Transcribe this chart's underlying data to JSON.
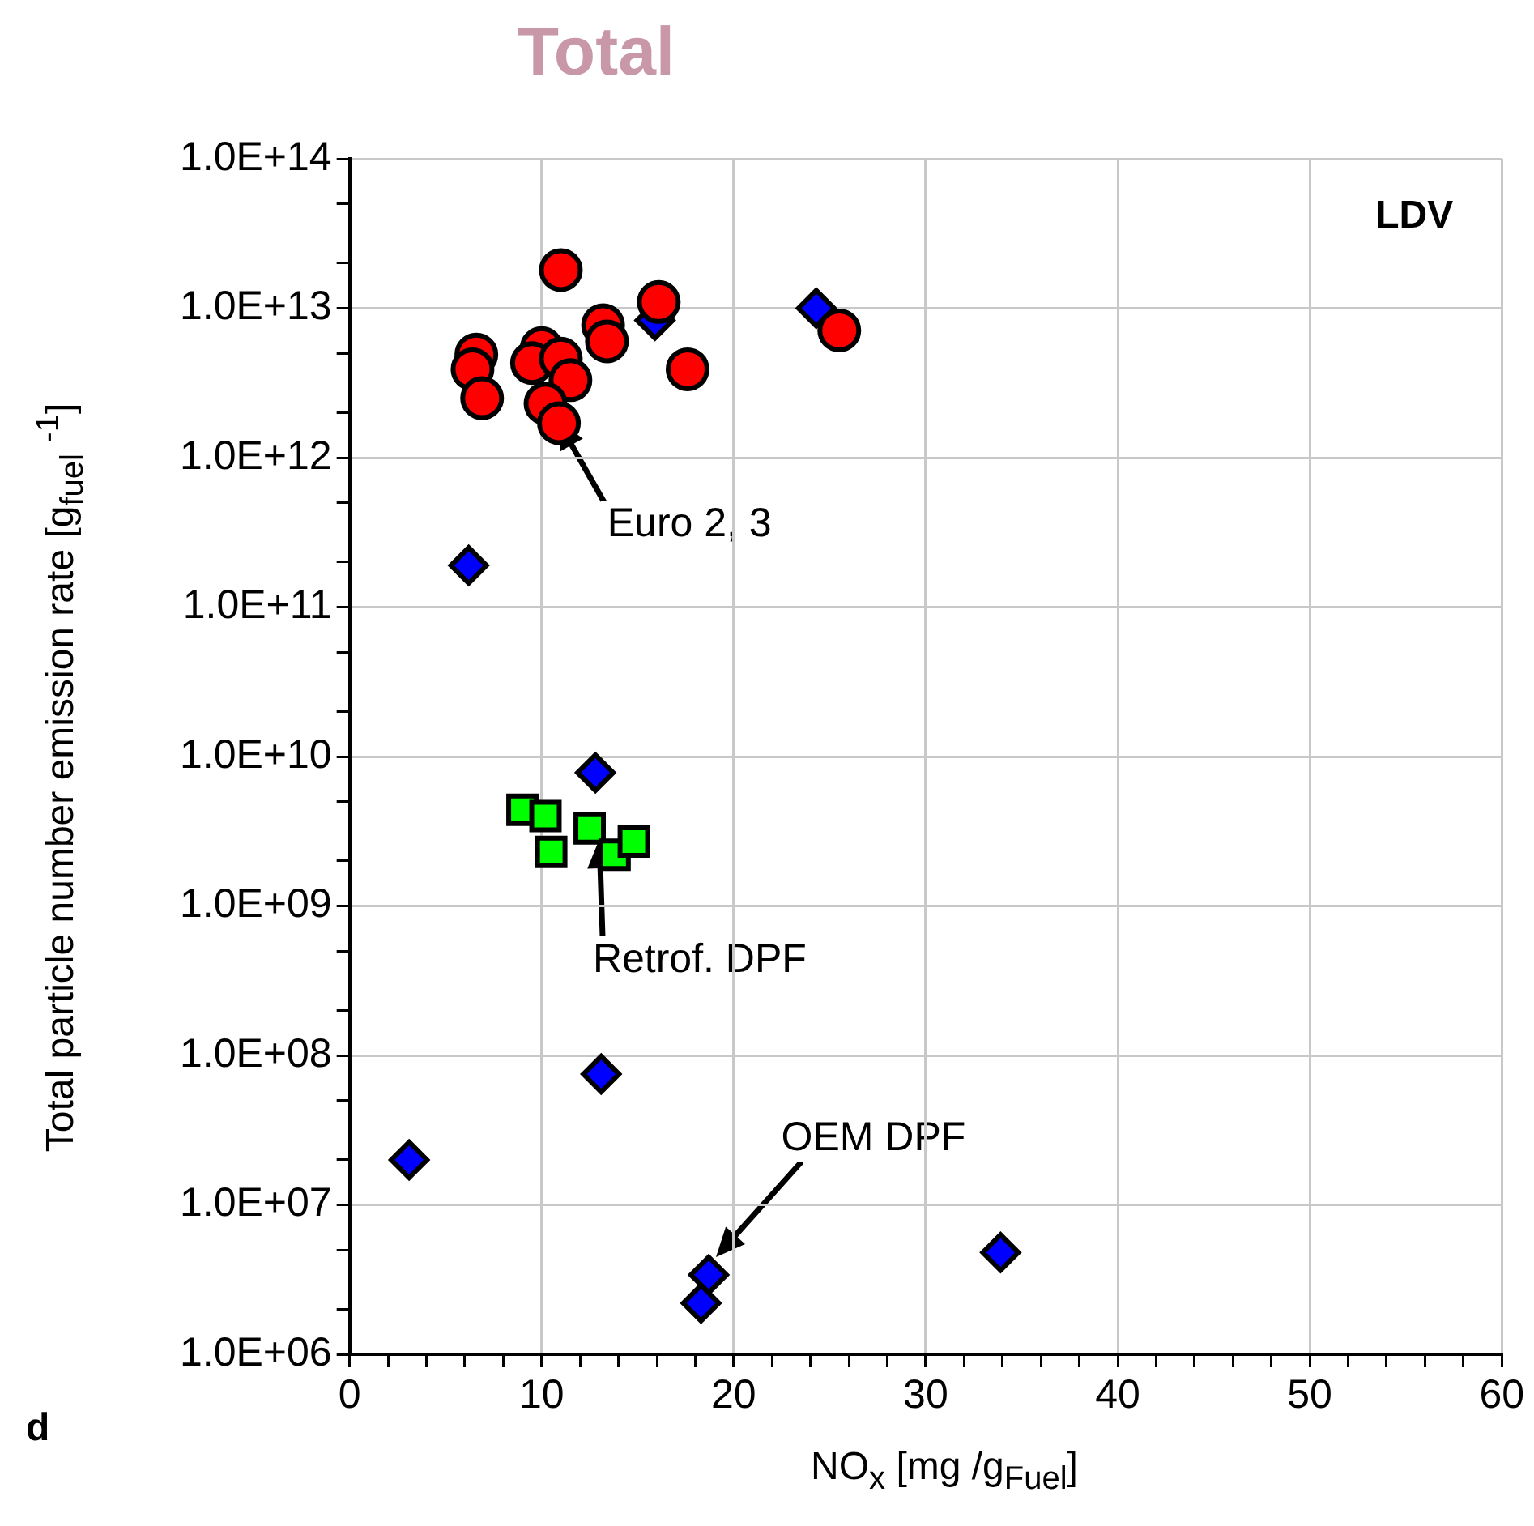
{
  "chart_data": {
    "type": "scatter",
    "title": "Total",
    "xlabel": "NO$_{x}$ [mg /g$_{Fuel}$]",
    "ylabel": "Total particle number emission rate  [g$_{fuel}$ $^{-1}$]",
    "log": "y",
    "grid": true,
    "legend": false,
    "xlim": [
      0,
      60
    ],
    "xticks": [
      0,
      {
        "value": 2,
        "label": null
      },
      {
        "value": 4,
        "label": null
      },
      {
        "value": 6,
        "label": null
      },
      {
        "value": 8,
        "label": null
      },
      10,
      {
        "value": 12,
        "label": null
      },
      {
        "value": 14,
        "label": null
      },
      {
        "value": 16,
        "label": null
      },
      {
        "value": 18,
        "label": null
      },
      20,
      {
        "value": 22,
        "label": null
      },
      {
        "value": 24,
        "label": null
      },
      {
        "value": 26,
        "label": null
      },
      {
        "value": 28,
        "label": null
      },
      30,
      {
        "value": 32,
        "label": null
      },
      {
        "value": 34,
        "label": null
      },
      {
        "value": 36,
        "label": null
      },
      {
        "value": 38,
        "label": null
      },
      40,
      {
        "value": 42,
        "label": null
      },
      {
        "value": 44,
        "label": null
      },
      {
        "value": 46,
        "label": null
      },
      {
        "value": 48,
        "label": null
      },
      50,
      {
        "value": 52,
        "label": null
      },
      {
        "value": 54,
        "label": null
      },
      {
        "value": 56,
        "label": null
      },
      {
        "value": 58,
        "label": null
      },
      60
    ],
    "ylim": [
      1000000.0,
      100000000000000.0
    ],
    "yticks": [
      {
        "value": 1000000.0,
        "label": "1.0E+06"
      },
      {
        "value": 2000000.0,
        "label": null
      },
      {
        "value": 5000000.0,
        "label": null
      },
      {
        "value": 10000000.0,
        "label": "1.0E+07"
      },
      {
        "value": 20000000.0,
        "label": null
      },
      {
        "value": 50000000.0,
        "label": null
      },
      {
        "value": 100000000.0,
        "label": "1.0E+08"
      },
      {
        "value": 200000000.0,
        "label": null
      },
      {
        "value": 500000000.0,
        "label": null
      },
      {
        "value": 1000000000.0,
        "label": "1.0E+09"
      },
      {
        "value": 2000000000.0,
        "label": null
      },
      {
        "value": 5000000000.0,
        "label": null
      },
      {
        "value": 10000000000.0,
        "label": "1.0E+10"
      },
      {
        "value": 20000000000.0,
        "label": null
      },
      {
        "value": 50000000000.0,
        "label": null
      },
      {
        "value": 100000000000.0,
        "label": "1.0E+11"
      },
      {
        "value": 200000000000.0,
        "label": null
      },
      {
        "value": 500000000000.0,
        "label": null
      },
      {
        "value": 1000000000000.0,
        "label": "1.0E+12"
      },
      {
        "value": 2000000000000.0,
        "label": null
      },
      {
        "value": 5000000000000.0,
        "label": null
      },
      {
        "value": 10000000000000.0,
        "label": "1.0E+13"
      },
      {
        "value": 20000000000000.0,
        "label": null
      },
      {
        "value": 50000000000000.0,
        "label": null
      },
      {
        "value": 100000000000000.0,
        "label": "1.0E+14"
      }
    ],
    "series": [
      {
        "type": "scatter",
        "marker": "circle",
        "color": "#ff0000",
        "x": [
          11.0,
          16.1,
          13.2,
          13.4,
          25.5,
          6.6,
          6.4,
          6.9,
          10.0,
          9.5,
          11.0,
          11.5,
          10.2,
          10.9,
          17.6
        ],
        "values": [
          18000000000000.0,
          11000000000000.0,
          7700000000000.0,
          6000000000000.0,
          7100000000000.0,
          4900000000000.0,
          3900000000000.0,
          2500000000000.0,
          5400000000000.0,
          4300000000000.0,
          4600000000000.0,
          3300000000000.0,
          2300000000000.0,
          1700000000000.0,
          3900000000000.0
        ]
      },
      {
        "type": "scatter",
        "marker": "square",
        "color": "#00ff00",
        "x": [
          9.0,
          10.2,
          10.5,
          12.5,
          13.8,
          14.8
        ],
        "values": [
          4400000000.0,
          4000000000.0,
          2300000000.0,
          3300000000.0,
          2200000000.0,
          2700000000.0
        ]
      },
      {
        "type": "scatter",
        "marker": "diamond",
        "color": "#0000ff",
        "x": [
          15.9,
          24.3,
          6.2,
          12.8,
          13.1,
          3.1,
          18.7,
          18.3,
          33.9
        ],
        "values": [
          8300000000000.0,
          10000000000000.0,
          190000000000.0,
          7800000000.0,
          75000000.0,
          20000000.0,
          3400000.0,
          2200000.0,
          4800000.0
        ]
      }
    ],
    "annotations": [
      {
        "text": "Euro 2, 3",
        "x": 10.8,
        "y": 1800000000000.0
      },
      {
        "text": "Retrof. DPF",
        "x": 13.0,
        "y": 2800000000.0
      },
      {
        "text": "OEM DPF",
        "x": 19.1,
        "y": 4500000.0
      },
      "LDV",
      "d"
    ]
  }
}
